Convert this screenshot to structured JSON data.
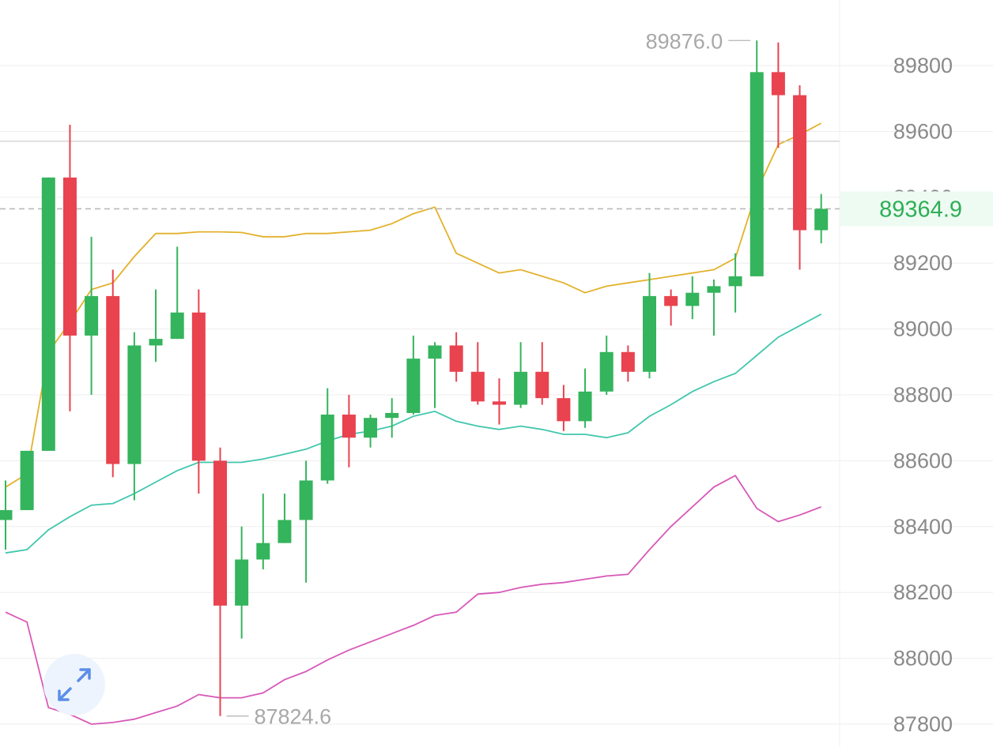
{
  "chart_data": {
    "type": "candlestick",
    "y_axis": {
      "ticks": [
        89800,
        89600,
        89400,
        89200,
        89000,
        88800,
        88600,
        88400,
        88200,
        88000,
        87800
      ],
      "range": [
        87745,
        89945
      ],
      "position": "right"
    },
    "grid": true,
    "current_price": {
      "value": 89364.9,
      "label": "89364.9",
      "color": "#2fae57"
    },
    "reference_line": 89570,
    "max_marker": {
      "value": 89876.0,
      "label": "89876.0"
    },
    "min_marker": {
      "value": 87824.6,
      "label": "87824.6"
    },
    "colors": {
      "up": "#34b45c",
      "down": "#e8434f",
      "upper_band": "#e3b12b",
      "middle_band": "#41c7ad",
      "lower_band": "#d759b8",
      "grid": "#eeeeee",
      "axis_text": "#8a8a8a"
    },
    "candles": [
      {
        "o": 88420,
        "h": 88540,
        "l": 88330,
        "c": 88450
      },
      {
        "o": 88450,
        "h": 88630,
        "l": 88450,
        "c": 88630
      },
      {
        "o": 88630,
        "h": 89460,
        "l": 88630,
        "c": 89460
      },
      {
        "o": 89460,
        "h": 89620,
        "l": 88750,
        "c": 88980
      },
      {
        "o": 88980,
        "h": 89280,
        "l": 88800,
        "c": 89100
      },
      {
        "o": 89100,
        "h": 89180,
        "l": 88550,
        "c": 88590
      },
      {
        "o": 88590,
        "h": 88990,
        "l": 88480,
        "c": 88950
      },
      {
        "o": 88950,
        "h": 89120,
        "l": 88900,
        "c": 88970
      },
      {
        "o": 88970,
        "h": 89250,
        "l": 88970,
        "c": 89050
      },
      {
        "o": 89050,
        "h": 89120,
        "l": 88500,
        "c": 88600
      },
      {
        "o": 88600,
        "h": 88640,
        "l": 87824.6,
        "c": 88160
      },
      {
        "o": 88160,
        "h": 88400,
        "l": 88060,
        "c": 88300
      },
      {
        "o": 88300,
        "h": 88500,
        "l": 88270,
        "c": 88350
      },
      {
        "o": 88350,
        "h": 88500,
        "l": 88350,
        "c": 88420
      },
      {
        "o": 88420,
        "h": 88600,
        "l": 88230,
        "c": 88540
      },
      {
        "o": 88540,
        "h": 88820,
        "l": 88530,
        "c": 88740
      },
      {
        "o": 88740,
        "h": 88800,
        "l": 88580,
        "c": 88670
      },
      {
        "o": 88670,
        "h": 88740,
        "l": 88640,
        "c": 88730
      },
      {
        "o": 88730,
        "h": 88790,
        "l": 88670,
        "c": 88745
      },
      {
        "o": 88745,
        "h": 88980,
        "l": 88740,
        "c": 88910
      },
      {
        "o": 88910,
        "h": 88960,
        "l": 88760,
        "c": 88950
      },
      {
        "o": 88950,
        "h": 88990,
        "l": 88840,
        "c": 88870
      },
      {
        "o": 88870,
        "h": 88960,
        "l": 88770,
        "c": 88780
      },
      {
        "o": 88780,
        "h": 88850,
        "l": 88710,
        "c": 88770
      },
      {
        "o": 88770,
        "h": 88960,
        "l": 88760,
        "c": 88870
      },
      {
        "o": 88870,
        "h": 88960,
        "l": 88770,
        "c": 88790
      },
      {
        "o": 88790,
        "h": 88830,
        "l": 88690,
        "c": 88720
      },
      {
        "o": 88720,
        "h": 88880,
        "l": 88700,
        "c": 88810
      },
      {
        "o": 88810,
        "h": 88980,
        "l": 88800,
        "c": 88930
      },
      {
        "o": 88930,
        "h": 88950,
        "l": 88840,
        "c": 88870
      },
      {
        "o": 88870,
        "h": 89170,
        "l": 88850,
        "c": 89100
      },
      {
        "o": 89100,
        "h": 89120,
        "l": 89010,
        "c": 89070
      },
      {
        "o": 89070,
        "h": 89160,
        "l": 89030,
        "c": 89110
      },
      {
        "o": 89110,
        "h": 89150,
        "l": 88980,
        "c": 89130
      },
      {
        "o": 89130,
        "h": 89230,
        "l": 89050,
        "c": 89160
      },
      {
        "o": 89160,
        "h": 89876.0,
        "l": 89160,
        "c": 89780
      },
      {
        "o": 89780,
        "h": 89870,
        "l": 89550,
        "c": 89710
      },
      {
        "o": 89710,
        "h": 89740,
        "l": 89180,
        "c": 89300
      },
      {
        "o": 89300,
        "h": 89410,
        "l": 89260,
        "c": 89364.9
      }
    ],
    "upper_band": [
      88520,
      88560,
      88930,
      89020,
      89120,
      89140,
      89220,
      89290,
      89290,
      89295,
      89295,
      89293,
      89280,
      89280,
      89290,
      89290,
      89295,
      89300,
      89320,
      89350,
      89370,
      89230,
      89200,
      89170,
      89180,
      89160,
      89140,
      89110,
      89130,
      89140,
      89150,
      89160,
      89170,
      89180,
      89215,
      89420,
      89560,
      89590,
      89625
    ],
    "middle_band": [
      88320,
      88330,
      88390,
      88430,
      88465,
      88470,
      88500,
      88535,
      88570,
      88595,
      88595,
      88595,
      88605,
      88620,
      88635,
      88660,
      88680,
      88690,
      88705,
      88735,
      88750,
      88720,
      88705,
      88695,
      88705,
      88695,
      88680,
      88680,
      88670,
      88685,
      88735,
      88770,
      88810,
      88840,
      88865,
      88920,
      88975,
      89010,
      89045
    ],
    "lower_band": [
      88140,
      88110,
      87850,
      87830,
      87800,
      87805,
      87815,
      87835,
      87855,
      87890,
      87880,
      87880,
      87895,
      87935,
      87960,
      87995,
      88025,
      88050,
      88075,
      88100,
      88130,
      88140,
      88195,
      88200,
      88215,
      88225,
      88230,
      88240,
      88250,
      88255,
      88330,
      88400,
      88460,
      88520,
      88555,
      88455,
      88415,
      88435,
      88460
    ]
  },
  "controls": {
    "expand_icon": "expand-arrows-icon"
  }
}
